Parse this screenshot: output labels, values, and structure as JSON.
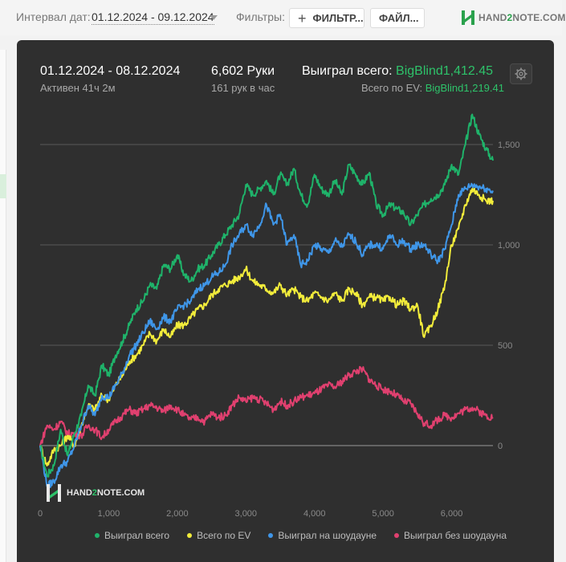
{
  "toolbar": {
    "interval_label": "Интервал дат:",
    "interval_value": "01.12.2024 - 09.12.2024",
    "filters_label": "Фильтры:",
    "filter_button": "ФИЛЬТР...",
    "files_button": "ФАЙЛ...",
    "logo_part1": "HAND",
    "logo_part2": "2",
    "logo_part3": "NOTE.COM"
  },
  "summary": {
    "date_range": "01.12.2024 - 08.12.2024",
    "active": "Активен 41ч 2м",
    "hands": "6,602 Руки",
    "hands_rate": "161 рук в час",
    "won_total_label": "Выиграл всего:",
    "won_total_value": "BigBlind1,412.45",
    "ev_total_label": "Всего по EV:",
    "ev_total_value": "BigBlind1,219.41"
  },
  "watermark": {
    "part1": "HAND",
    "part2": "2",
    "part3": "NOTE.COM"
  },
  "colors": {
    "won_total": "#1fb36a",
    "ev": "#f2ec3b",
    "showdown": "#3f96e8",
    "non_showdown": "#e0406f"
  },
  "chart_data": {
    "type": "line",
    "xlim": [
      0,
      6602
    ],
    "ylim": [
      -300,
      1700
    ],
    "x_ticks": [
      0,
      1000,
      2000,
      3000,
      4000,
      5000,
      6000
    ],
    "x_tick_labels": [
      "0",
      "1,000",
      "2,000",
      "3,000",
      "4,000",
      "5,000",
      "6,000"
    ],
    "y_ticks": [
      0,
      500,
      1000,
      1500
    ],
    "y_tick_labels": [
      "0",
      "500",
      "1,000",
      "1,500"
    ],
    "grid": true,
    "legend_position": "bottom",
    "x": [
      0,
      100,
      200,
      300,
      400,
      500,
      600,
      700,
      800,
      900,
      1000,
      1100,
      1200,
      1300,
      1400,
      1500,
      1600,
      1700,
      1800,
      1900,
      2000,
      2100,
      2200,
      2300,
      2400,
      2500,
      2600,
      2700,
      2800,
      2900,
      3000,
      3100,
      3200,
      3300,
      3400,
      3500,
      3600,
      3700,
      3800,
      3900,
      4000,
      4100,
      4200,
      4300,
      4400,
      4500,
      4600,
      4700,
      4800,
      4900,
      5000,
      5100,
      5200,
      5300,
      5400,
      5500,
      5600,
      5700,
      5800,
      5900,
      6000,
      6100,
      6200,
      6300,
      6400,
      6500,
      6602
    ],
    "series": [
      {
        "name": "Выиграл всего",
        "values": [
          0,
          -150,
          -100,
          80,
          -50,
          60,
          150,
          300,
          250,
          400,
          350,
          450,
          520,
          600,
          680,
          720,
          800,
          780,
          900,
          880,
          950,
          850,
          820,
          880,
          900,
          950,
          1000,
          1050,
          1100,
          1150,
          1300,
          1250,
          1280,
          1320,
          1250,
          1350,
          1300,
          1380,
          1250,
          1200,
          1350,
          1280,
          1250,
          1320,
          1250,
          1400,
          1350,
          1300,
          1360,
          1200,
          1150,
          1200,
          1180,
          1160,
          1100,
          1150,
          1200,
          1230,
          1250,
          1300,
          1400,
          1350,
          1500,
          1650,
          1550,
          1480,
          1420
        ]
      },
      {
        "name": "Всего по EV",
        "values": [
          0,
          -100,
          -20,
          0,
          50,
          0,
          100,
          200,
          180,
          250,
          230,
          300,
          350,
          420,
          450,
          500,
          560,
          520,
          580,
          540,
          600,
          600,
          640,
          680,
          700,
          750,
          780,
          800,
          820,
          840,
          880,
          820,
          800,
          780,
          760,
          800,
          750,
          780,
          740,
          720,
          760,
          740,
          720,
          760,
          720,
          780,
          760,
          700,
          740,
          740,
          720,
          740,
          700,
          720,
          680,
          700,
          540,
          600,
          680,
          800,
          1000,
          1080,
          1200,
          1280,
          1250,
          1220,
          1220
        ]
      },
      {
        "name": "Выиграл на шоудауне",
        "values": [
          0,
          -200,
          -180,
          -100,
          -80,
          0,
          100,
          200,
          150,
          250,
          240,
          300,
          360,
          450,
          500,
          560,
          620,
          580,
          640,
          620,
          680,
          700,
          720,
          780,
          800,
          840,
          860,
          900,
          1000,
          1050,
          1100,
          1050,
          1100,
          1200,
          1100,
          1150,
          1000,
          1050,
          900,
          920,
          1000,
          980,
          960,
          1020,
          990,
          1050,
          1020,
          950,
          1000,
          1000,
          980,
          1050,
          1000,
          1020,
          980,
          1000,
          1000,
          950,
          920,
          980,
          1100,
          1250,
          1280,
          1300,
          1290,
          1280,
          1270
        ]
      },
      {
        "name": "Выиграл без шоудауна",
        "values": [
          0,
          100,
          80,
          120,
          60,
          60,
          50,
          100,
          80,
          40,
          80,
          120,
          150,
          180,
          160,
          180,
          200,
          190,
          170,
          200,
          180,
          150,
          130,
          140,
          120,
          160,
          140,
          150,
          200,
          240,
          220,
          240,
          230,
          210,
          180,
          220,
          200,
          220,
          240,
          250,
          260,
          280,
          300,
          290,
          320,
          350,
          370,
          380,
          330,
          300,
          280,
          270,
          250,
          220,
          210,
          160,
          110,
          100,
          130,
          150,
          140,
          160,
          180,
          190,
          170,
          150,
          140
        ]
      }
    ]
  }
}
